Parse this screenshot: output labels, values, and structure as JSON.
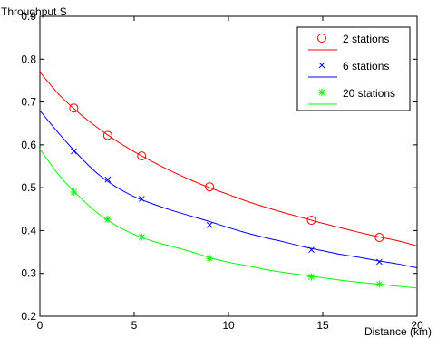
{
  "chart_data": {
    "type": "line",
    "title": "",
    "ylabel": "Throughput S",
    "xlabel": "Distance (km)",
    "xlim": [
      0,
      20
    ],
    "ylim": [
      0.2,
      0.9
    ],
    "xticks": [
      "0",
      "5",
      "10",
      "15",
      "20"
    ],
    "yticks": [
      "0.2",
      "0.3",
      "0.4",
      "0.5",
      "0.6",
      "0.7",
      "0.8",
      "0.9"
    ],
    "grid": false,
    "legend_position": "top-right",
    "series": [
      {
        "name": "2 stations",
        "color": "#ff0000",
        "marker": "circle",
        "curve_x": [
          0,
          1,
          2,
          3,
          4,
          5,
          6,
          7,
          8,
          9,
          10,
          11,
          12,
          13,
          14,
          15,
          16,
          17,
          18,
          19,
          20
        ],
        "curve_y": [
          0.77,
          0.718,
          0.677,
          0.642,
          0.611,
          0.584,
          0.56,
          0.538,
          0.518,
          0.5,
          0.484,
          0.468,
          0.454,
          0.441,
          0.429,
          0.417,
          0.406,
          0.395,
          0.385,
          0.376,
          0.364
        ],
        "marker_x": [
          1.8,
          3.6,
          5.4,
          9.0,
          14.4,
          18.0
        ],
        "marker_y": [
          0.686,
          0.622,
          0.574,
          0.502,
          0.424,
          0.384
        ]
      },
      {
        "name": "6 stations",
        "color": "#0000ff",
        "marker": "x",
        "curve_x": [
          0,
          1,
          2,
          3,
          4,
          5,
          6,
          7,
          8,
          9,
          10,
          11,
          12,
          13,
          14,
          15,
          16,
          17,
          18,
          19,
          20
        ],
        "curve_y": [
          0.68,
          0.627,
          0.578,
          0.535,
          0.503,
          0.479,
          0.462,
          0.447,
          0.434,
          0.421,
          0.407,
          0.394,
          0.383,
          0.373,
          0.362,
          0.353,
          0.344,
          0.337,
          0.329,
          0.322,
          0.313
        ],
        "marker_x": [
          1.8,
          3.6,
          5.4,
          9.0,
          14.4,
          18.0
        ],
        "marker_y": [
          0.585,
          0.519,
          0.474,
          0.413,
          0.355,
          0.327
        ]
      },
      {
        "name": "20 stations",
        "color": "#00ff00",
        "marker": "asterisk",
        "curve_x": [
          0,
          1,
          2,
          3,
          4,
          5,
          6,
          7,
          8,
          9,
          10,
          11,
          12,
          13,
          14,
          15,
          16,
          17,
          18,
          19,
          20
        ],
        "curve_y": [
          0.59,
          0.53,
          0.483,
          0.443,
          0.413,
          0.391,
          0.375,
          0.363,
          0.351,
          0.337,
          0.326,
          0.318,
          0.309,
          0.302,
          0.296,
          0.29,
          0.284,
          0.279,
          0.275,
          0.27,
          0.266
        ],
        "marker_x": [
          1.8,
          3.6,
          5.4,
          9.0,
          14.4,
          18.0
        ],
        "marker_y": [
          0.49,
          0.426,
          0.385,
          0.335,
          0.292,
          0.275
        ]
      }
    ]
  }
}
